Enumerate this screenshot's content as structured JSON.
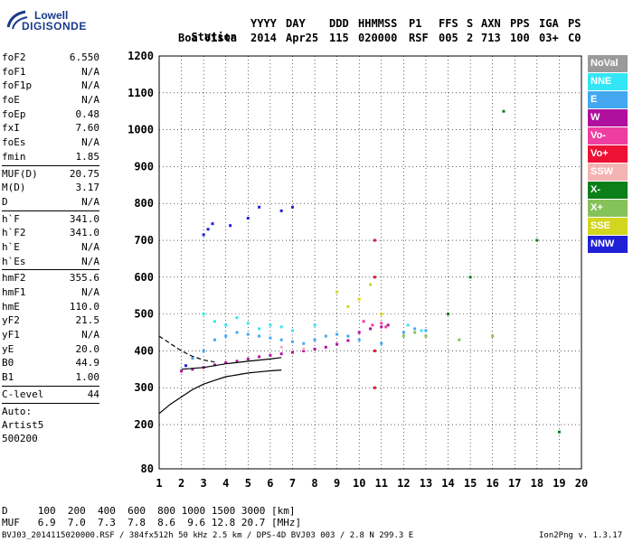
{
  "logo": {
    "line1": "Lowell",
    "line2": "DIGISONDE"
  },
  "header": {
    "labels": [
      "Station",
      "YYYY",
      "DAY",
      "DDD",
      "HHMMSS",
      "P1",
      "FFS",
      "S",
      "AXN",
      "PPS",
      "IGA",
      "PS"
    ],
    "values": [
      "Boa Vista",
      "2014",
      "Apr25",
      "115",
      "020000",
      "RSF",
      "005",
      "2",
      "713",
      "100",
      "03+",
      "C0"
    ]
  },
  "parameters": {
    "group1": [
      {
        "label": "foF2",
        "value": "6.550"
      },
      {
        "label": "foF1",
        "value": "N/A"
      },
      {
        "label": "foF1p",
        "value": "N/A"
      },
      {
        "label": "foE",
        "value": "N/A"
      },
      {
        "label": "foEp",
        "value": "0.48"
      },
      {
        "label": "fxI",
        "value": "7.60"
      },
      {
        "label": "foEs",
        "value": "N/A"
      },
      {
        "label": "fmin",
        "value": "1.85"
      }
    ],
    "group2": [
      {
        "label": "MUF(D)",
        "value": "20.75"
      },
      {
        "label": "M(D)",
        "value": "3.17"
      },
      {
        "label": "D",
        "value": "N/A"
      }
    ],
    "group3": [
      {
        "label": "h`F",
        "value": "341.0"
      },
      {
        "label": "h`F2",
        "value": "341.0"
      },
      {
        "label": "h`E",
        "value": "N/A"
      },
      {
        "label": "h`Es",
        "value": "N/A"
      }
    ],
    "group4": [
      {
        "label": "hmF2",
        "value": "355.6"
      },
      {
        "label": "hmF1",
        "value": "N/A"
      },
      {
        "label": "hmE",
        "value": "110.0"
      },
      {
        "label": "yF2",
        "value": "21.5"
      },
      {
        "label": "yF1",
        "value": "N/A"
      },
      {
        "label": "yE",
        "value": "20.0"
      },
      {
        "label": "B0",
        "value": "44.9"
      },
      {
        "label": "B1",
        "value": "1.00"
      }
    ],
    "group5": [
      {
        "label": "C-level",
        "value": "44"
      }
    ],
    "notes": [
      "Auto:",
      "Artist5",
      "500200"
    ]
  },
  "legend": [
    {
      "label": "NoVal",
      "color": "#9a9a9a"
    },
    {
      "label": "NNE",
      "color": "#33e6f5"
    },
    {
      "label": "E",
      "color": "#44a8f0"
    },
    {
      "label": "W",
      "color": "#b0109e"
    },
    {
      "label": "Vo-",
      "color": "#ee3fa0"
    },
    {
      "label": "Vo+",
      "color": "#ee1136"
    },
    {
      "label": "SSW",
      "color": "#f4b3b3"
    },
    {
      "label": "X-",
      "color": "#0c7f1b"
    },
    {
      "label": "X+",
      "color": "#86c25a"
    },
    {
      "label": "SSE",
      "color": "#d2d61e"
    },
    {
      "label": "NNW",
      "color": "#2020d8"
    }
  ],
  "muf_table": {
    "d_row": "D     100  200  400  600  800 1000 1500 3000 [km]",
    "muf_row": "MUF   6.9  7.0  7.3  7.8  8.6  9.6 12.8 20.7 [MHz]"
  },
  "footer": {
    "left": "BVJ03_2014115020000.RSF / 384fx512h 50 kHz 2.5 km / DPS-4D BVJ03 003 / 2.8 N 299.3 E",
    "right": "Ion2Png v. 1.3.17"
  },
  "chart_data": {
    "type": "scatter",
    "title": "",
    "xlabel": "",
    "ylabel": "",
    "xlim": [
      1,
      20
    ],
    "ylim": [
      80,
      1200
    ],
    "x_ticks": [
      1,
      2,
      3,
      4,
      5,
      6,
      7,
      8,
      9,
      10,
      11,
      12,
      13,
      14,
      15,
      16,
      17,
      18,
      19,
      20
    ],
    "y_ticks": [
      80,
      200,
      300,
      400,
      500,
      600,
      700,
      800,
      900,
      1000,
      1100,
      1200
    ],
    "grid": true,
    "legend_position": "right",
    "series": [
      {
        "name": "W",
        "color": "#b0109e",
        "points": [
          [
            2.0,
            345
          ],
          [
            2.5,
            350
          ],
          [
            3.0,
            355
          ],
          [
            3.5,
            362
          ],
          [
            4.0,
            368
          ],
          [
            4.5,
            372
          ],
          [
            5.0,
            378
          ],
          [
            5.5,
            384
          ],
          [
            6.0,
            388
          ],
          [
            6.5,
            392
          ],
          [
            7.0,
            396
          ],
          [
            7.5,
            400
          ],
          [
            8.0,
            405
          ],
          [
            8.5,
            410
          ],
          [
            9.0,
            418
          ],
          [
            9.5,
            428
          ],
          [
            10.0,
            450
          ],
          [
            10.5,
            460
          ],
          [
            11.0,
            465
          ],
          [
            11.3,
            470
          ]
        ]
      },
      {
        "name": "E",
        "color": "#44a8f0",
        "points": [
          [
            2.5,
            380
          ],
          [
            3.0,
            400
          ],
          [
            3.5,
            430
          ],
          [
            4.0,
            440
          ],
          [
            4.5,
            450
          ],
          [
            5.0,
            445
          ],
          [
            5.5,
            440
          ],
          [
            6.0,
            435
          ],
          [
            6.5,
            430
          ],
          [
            7.0,
            425
          ],
          [
            7.5,
            420
          ],
          [
            8.0,
            430
          ],
          [
            8.5,
            440
          ],
          [
            9.0,
            445
          ],
          [
            9.5,
            440
          ],
          [
            10.0,
            430
          ],
          [
            11.0,
            420
          ],
          [
            12.0,
            450
          ],
          [
            12.5,
            460
          ],
          [
            13.0,
            455
          ]
        ]
      },
      {
        "name": "NNE",
        "color": "#33e6f5",
        "points": [
          [
            3.0,
            500
          ],
          [
            3.5,
            480
          ],
          [
            4.0,
            470
          ],
          [
            4.5,
            490
          ],
          [
            5.0,
            475
          ],
          [
            5.5,
            460
          ],
          [
            6.0,
            470
          ],
          [
            6.5,
            465
          ],
          [
            7.0,
            455
          ],
          [
            8.0,
            470
          ],
          [
            12.2,
            470
          ],
          [
            12.8,
            455
          ]
        ]
      },
      {
        "name": "NNW",
        "color": "#2020d8",
        "points": [
          [
            2.2,
            360
          ],
          [
            3.0,
            715
          ],
          [
            3.2,
            730
          ],
          [
            3.4,
            745
          ],
          [
            4.2,
            740
          ],
          [
            5.0,
            760
          ],
          [
            5.5,
            790
          ],
          [
            6.5,
            780
          ],
          [
            7.0,
            790
          ]
        ]
      },
      {
        "name": "Vo-",
        "color": "#ee3fa0",
        "points": [
          [
            10.2,
            480
          ],
          [
            10.6,
            470
          ],
          [
            11.0,
            475
          ],
          [
            11.2,
            465
          ]
        ]
      },
      {
        "name": "Vo+",
        "color": "#ee1136",
        "points": [
          [
            10.7,
            300
          ],
          [
            10.7,
            400
          ],
          [
            10.7,
            600
          ],
          [
            10.7,
            700
          ]
        ]
      },
      {
        "name": "X+",
        "color": "#86c25a",
        "points": [
          [
            12.0,
            440
          ],
          [
            12.5,
            450
          ],
          [
            13.0,
            440
          ],
          [
            14.5,
            430
          ],
          [
            16.0,
            440
          ]
        ]
      },
      {
        "name": "SSE",
        "color": "#d2d61e",
        "points": [
          [
            9.0,
            560
          ],
          [
            9.5,
            520
          ],
          [
            10.0,
            540
          ],
          [
            10.5,
            580
          ],
          [
            11.0,
            500
          ]
        ]
      },
      {
        "name": "X-",
        "color": "#0c7f1b",
        "points": [
          [
            14.0,
            500
          ],
          [
            15.0,
            600
          ],
          [
            16.5,
            1050
          ],
          [
            18.0,
            700
          ],
          [
            19.0,
            180
          ]
        ]
      },
      {
        "name": "SSW",
        "color": "#f4b3b3",
        "points": [
          [
            6.5,
            410
          ],
          [
            7.5,
            405
          ]
        ]
      }
    ],
    "profile_curve": [
      [
        1.0,
        230
      ],
      [
        1.5,
        255
      ],
      [
        2.0,
        275
      ],
      [
        2.5,
        295
      ],
      [
        3.0,
        310
      ],
      [
        3.5,
        320
      ],
      [
        4.0,
        330
      ],
      [
        4.5,
        335
      ],
      [
        5.0,
        340
      ],
      [
        5.5,
        343
      ],
      [
        6.0,
        346
      ],
      [
        6.5,
        348
      ]
    ],
    "dashed_curve": [
      [
        1.0,
        440
      ],
      [
        1.5,
        420
      ],
      [
        2.0,
        400
      ],
      [
        2.5,
        385
      ],
      [
        3.0,
        375
      ],
      [
        3.5,
        370
      ]
    ],
    "trace_curve": [
      [
        2.0,
        350
      ],
      [
        3.0,
        355
      ],
      [
        4.0,
        365
      ],
      [
        5.0,
        372
      ],
      [
        6.0,
        378
      ],
      [
        6.5,
        382
      ]
    ]
  }
}
